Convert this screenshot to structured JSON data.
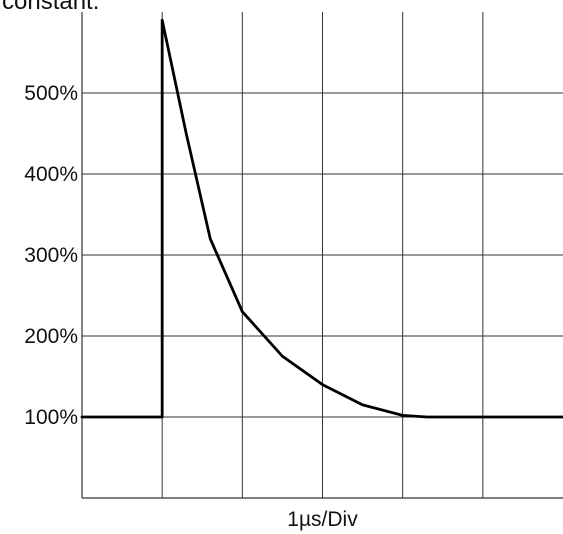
{
  "caption_fragment": "constant.",
  "chart_data": {
    "type": "line",
    "title": "",
    "xlabel": "1µs/Div",
    "ylabel": "",
    "xlim": [
      0,
      6
    ],
    "ylim": [
      0,
      6
    ],
    "grid": true,
    "y_ticks": [
      {
        "value": 1,
        "label": "100%"
      },
      {
        "value": 2,
        "label": "200%"
      },
      {
        "value": 3,
        "label": "300%"
      },
      {
        "value": 4,
        "label": "400%"
      },
      {
        "value": 5,
        "label": "500%"
      }
    ],
    "series": [
      {
        "x": [
          0,
          1,
          1,
          1.3,
          1.6,
          2.0,
          2.5,
          3.0,
          3.5,
          4.0,
          4.3,
          5.0,
          6.0
        ],
        "y": [
          1,
          1,
          5.9,
          4.5,
          3.2,
          2.3,
          1.75,
          1.4,
          1.15,
          1.02,
          1.0,
          1.0,
          1.0
        ]
      }
    ],
    "colors": {
      "grid": "#333333",
      "line": "#000000"
    }
  }
}
